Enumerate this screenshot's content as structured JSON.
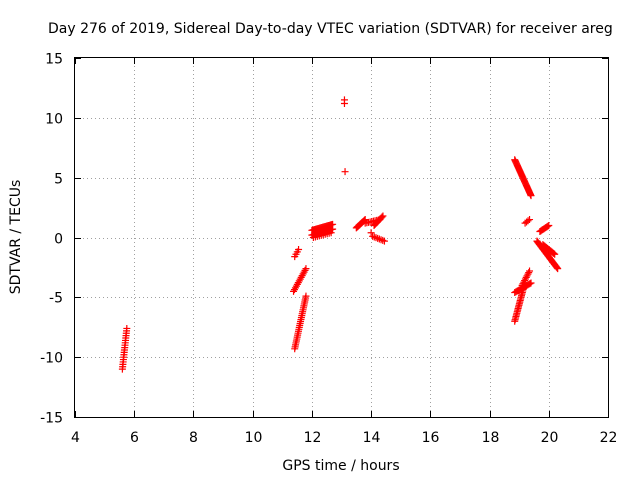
{
  "chart_data": {
    "type": "scatter",
    "title": "Day 276 of 2019, Sidereal Day-to-day VTEC variation (SDTVAR) for receiver areg",
    "xlabel": "GPS time / hours",
    "ylabel": "SDTVAR / TECUs",
    "xlim": [
      4,
      22
    ],
    "ylim": [
      -15,
      15
    ],
    "xticks": [
      4,
      6,
      8,
      10,
      12,
      14,
      16,
      18,
      20,
      22
    ],
    "yticks": [
      -15,
      -10,
      -5,
      0,
      5,
      10,
      15
    ],
    "grid": true,
    "marker": "+",
    "color": "#ff0000",
    "segments": [
      {
        "x": [
          5.6,
          5.75
        ],
        "y": [
          -11.0,
          -7.6
        ],
        "n": 18
      },
      {
        "x": [
          11.42,
          11.55
        ],
        "y": [
          -1.6,
          -1.0
        ],
        "n": 4
      },
      {
        "x": [
          11.38,
          11.8
        ],
        "y": [
          -4.5,
          -2.6
        ],
        "n": 14
      },
      {
        "x": [
          11.42,
          11.8
        ],
        "y": [
          -9.3,
          -4.9
        ],
        "n": 28
      },
      {
        "x": [
          12.0,
          12.7
        ],
        "y": [
          0.6,
          1.1
        ],
        "n": 22
      },
      {
        "x": [
          12.0,
          12.7
        ],
        "y": [
          0.2,
          0.7
        ],
        "n": 22
      },
      {
        "x": [
          12.05,
          12.65
        ],
        "y": [
          0.0,
          0.4
        ],
        "n": 10
      },
      {
        "x": [
          13.1,
          13.1
        ],
        "y": [
          11.2,
          11.5
        ],
        "n": 2
      },
      {
        "x": [
          13.12,
          13.12
        ],
        "y": [
          5.5,
          5.5
        ],
        "n": 1
      },
      {
        "x": [
          13.5,
          13.8
        ],
        "y": [
          0.8,
          1.5
        ],
        "n": 14
      },
      {
        "x": [
          13.8,
          14.3
        ],
        "y": [
          1.2,
          1.5
        ],
        "n": 10
      },
      {
        "x": [
          14.1,
          14.4
        ],
        "y": [
          1.0,
          1.8
        ],
        "n": 10
      },
      {
        "x": [
          14.05,
          14.45
        ],
        "y": [
          0.1,
          -0.3
        ],
        "n": 8
      },
      {
        "x": [
          14.0,
          14.0
        ],
        "y": [
          0.4,
          0.4
        ],
        "n": 1
      },
      {
        "x": [
          18.85,
          19.4
        ],
        "y": [
          6.5,
          3.5
        ],
        "n": 36
      },
      {
        "x": [
          19.2,
          19.35
        ],
        "y": [
          1.2,
          1.5
        ],
        "n": 4
      },
      {
        "x": [
          19.7,
          20.0
        ],
        "y": [
          0.5,
          1.0
        ],
        "n": 10
      },
      {
        "x": [
          19.6,
          20.3
        ],
        "y": [
          -0.3,
          -2.6
        ],
        "n": 34
      },
      {
        "x": [
          19.8,
          20.2
        ],
        "y": [
          -0.6,
          -1.4
        ],
        "n": 14
      },
      {
        "x": [
          18.85,
          19.4
        ],
        "y": [
          -4.6,
          -3.8
        ],
        "n": 16
      },
      {
        "x": [
          19.1,
          19.35
        ],
        "y": [
          -4.0,
          -2.8
        ],
        "n": 10
      },
      {
        "x": [
          18.85,
          19.15
        ],
        "y": [
          -7.0,
          -4.2
        ],
        "n": 22
      }
    ]
  }
}
